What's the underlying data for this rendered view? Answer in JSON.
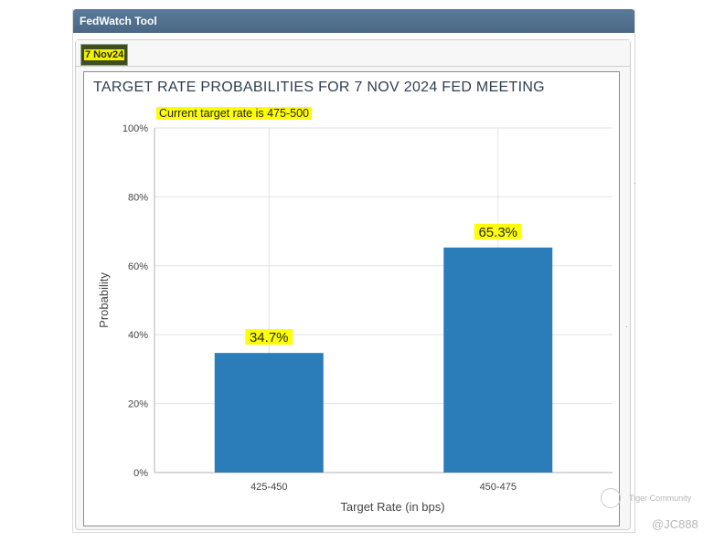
{
  "header": {
    "title": "FedWatch Tool"
  },
  "tabs": [
    {
      "label": "7 Nov24",
      "active": true
    }
  ],
  "watermark": {
    "community": "Tiger Community",
    "user": "@JC888"
  },
  "colors": {
    "bar": "#2a7db8",
    "highlight": "#ffff00",
    "header": "#4f6d8c"
  },
  "chart_data": {
    "type": "bar",
    "title": "TARGET RATE PROBABILITIES FOR 7 NOV 2024 FED MEETING",
    "subtitle": "Current target rate is 475-500",
    "xlabel": "Target Rate (in bps)",
    "ylabel": "Probability",
    "categories": [
      "425-450",
      "450-475"
    ],
    "values": [
      34.7,
      65.3
    ],
    "data_labels": [
      "34.7%",
      "65.3%"
    ],
    "ylim": [
      0,
      100
    ],
    "yticks": [
      0,
      20,
      40,
      60,
      80,
      100
    ],
    "ytick_labels": [
      "0%",
      "20%",
      "40%",
      "60%",
      "80%",
      "100%"
    ],
    "grid": true,
    "legend": "none"
  }
}
